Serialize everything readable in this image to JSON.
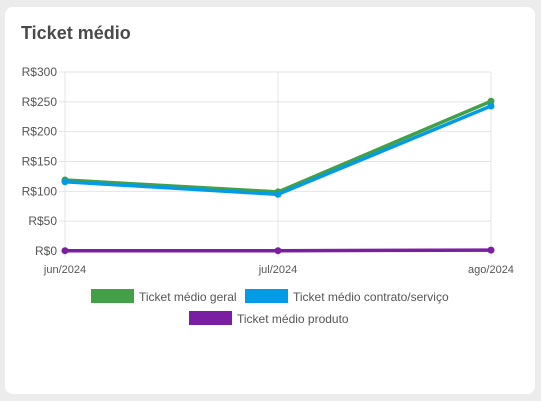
{
  "card": {
    "title": "Ticket médio"
  },
  "chart_data": {
    "type": "line",
    "title": "Ticket médio",
    "categories": [
      "jun/2024",
      "jul/2024",
      "ago/2024"
    ],
    "ylim": [
      0,
      300
    ],
    "y_ticks": [
      "R$0",
      "R$50",
      "R$100",
      "R$150",
      "R$200",
      "R$250",
      "R$300"
    ],
    "y_tick_values": [
      0,
      50,
      100,
      150,
      200,
      250,
      300
    ],
    "grid": true,
    "legend_position": "bottom",
    "series": [
      {
        "name": "Ticket médio geral",
        "color": "#43a047",
        "values": [
          119,
          99,
          251
        ]
      },
      {
        "name": "Ticket médio contrato/serviço",
        "color": "#039be5",
        "values": [
          116,
          95,
          243
        ]
      },
      {
        "name": "Ticket médio produto",
        "color": "#7b1fa2",
        "values": [
          0.5,
          0.5,
          1.5
        ]
      }
    ]
  }
}
